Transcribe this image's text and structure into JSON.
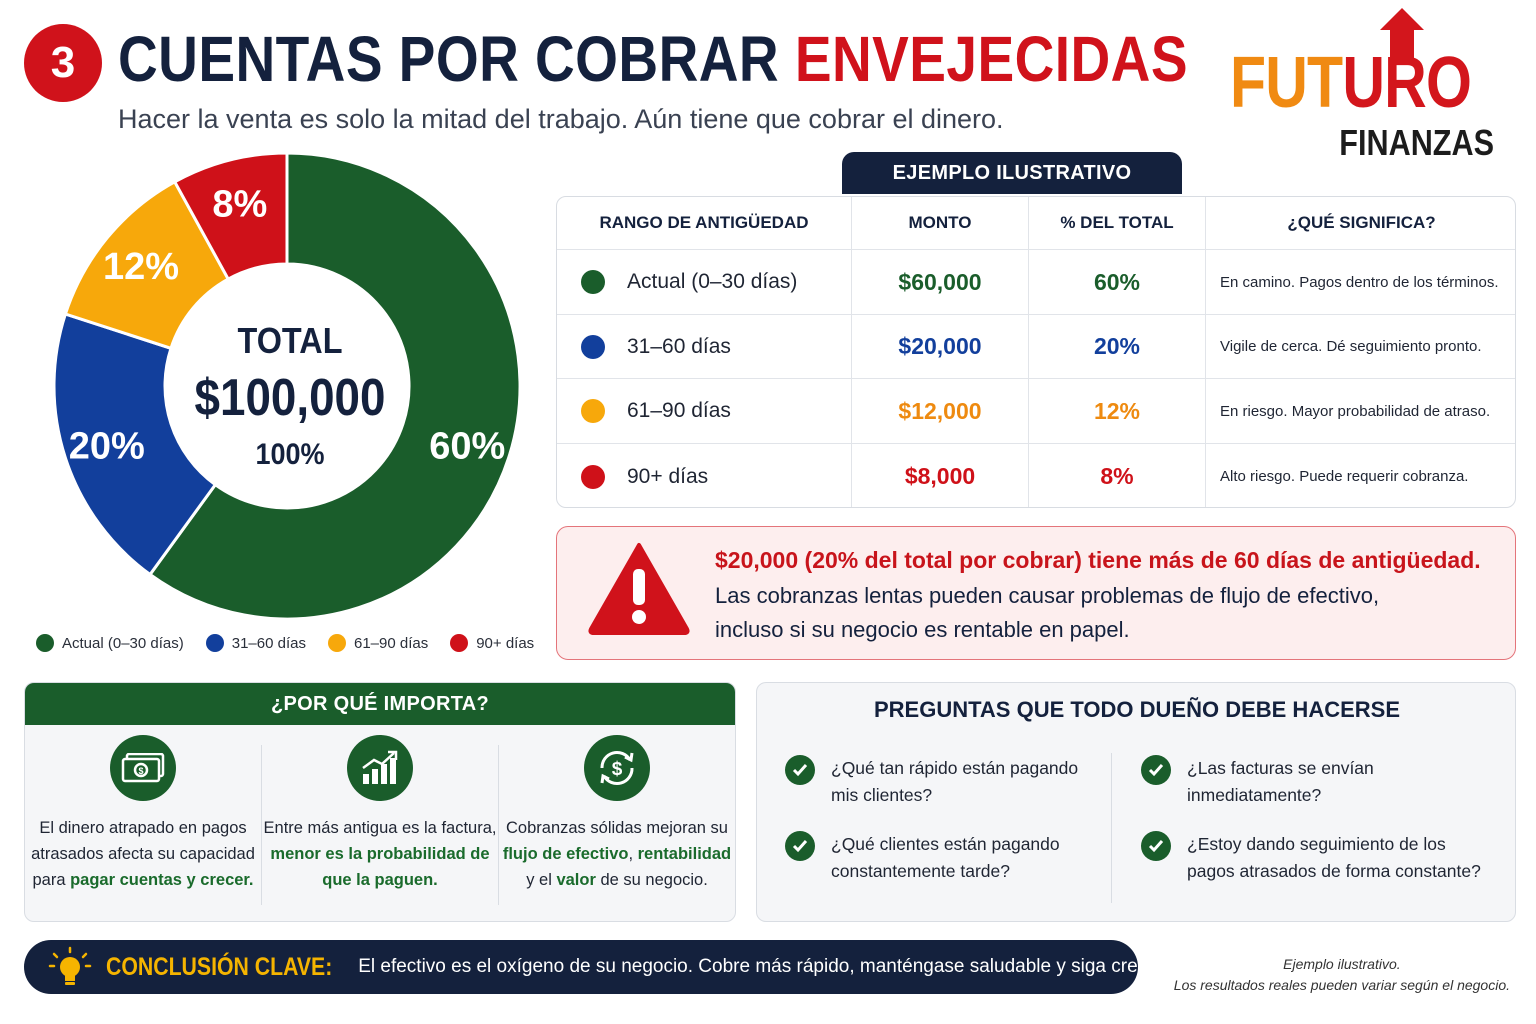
{
  "header": {
    "number": "3",
    "title_part1": "CUENTAS POR COBRAR",
    "title_part2": "ENVEJECIDAS",
    "subtitle": "Hacer la venta es solo la mitad del trabajo. Aún tiene que cobrar el dinero."
  },
  "logo": {
    "word_a": "FUT",
    "word_b": "U",
    "word_c": "RO",
    "word_bottom": "FINANZAS"
  },
  "colors": {
    "green": "#1a5d2b",
    "blue": "#123f9c",
    "orange": "#f7a80b",
    "red": "#cf1119",
    "navy": "#14213d"
  },
  "chart_data": {
    "type": "pie",
    "categories": [
      "Actual (0–30 días)",
      "31–60 días",
      "61–90 días",
      "90+ días"
    ],
    "values": [
      60,
      20,
      12,
      8
    ],
    "labels": [
      "60%",
      "20%",
      "12%",
      "8%"
    ],
    "legend_placement": "bottom",
    "center": {
      "title": "TOTAL",
      "amount": "$100,000",
      "percent": "100%"
    }
  },
  "table": {
    "tab_label": "EJEMPLO ILUSTRATIVO",
    "headers": [
      "RANGO DE ANTIGÜEDAD",
      "MONTO",
      "% DEL TOTAL",
      "¿QUÉ SIGNIFICA?"
    ],
    "rows": [
      {
        "range": "Actual (0–30 días)",
        "amount": "$60,000",
        "percent": "60%",
        "meaning": "En camino. Pagos dentro de los términos.",
        "color": "#1a5d2b"
      },
      {
        "range": "31–60 días",
        "amount": "$20,000",
        "percent": "20%",
        "meaning": "Vigile de cerca. Dé seguimiento pronto.",
        "color": "#123f9c"
      },
      {
        "range": "61–90 días",
        "amount": "$12,000",
        "percent": "12%",
        "meaning": "En riesgo. Mayor probabilidad de atraso.",
        "color": "#ee8a10"
      },
      {
        "range": "90+ días",
        "amount": "$8,000",
        "percent": "8%",
        "meaning": "Alto riesgo. Puede requerir cobranza.",
        "color": "#cf1119"
      }
    ]
  },
  "alert": {
    "line1": "$20,000 (20% del total por cobrar) tiene más de 60 días de antigüedad.",
    "line2": "Las cobranzas lentas pueden causar problemas de flujo de efectivo,",
    "line3": "incluso si su negocio es rentable en papel."
  },
  "why": {
    "title": "¿POR QUÉ IMPORTA?",
    "col1": {
      "a": "El dinero atrapado en pagos atrasados afecta su capacidad para ",
      "b": "pagar cuentas y crecer."
    },
    "col2": {
      "a": "Entre más antigua es la factura, ",
      "b": "menor es la probabilidad de que la paguen."
    },
    "col3": {
      "a": "Cobranzas sólidas mejoran su ",
      "b": "flujo de efectivo",
      "c": ", ",
      "d": "rentabilidad",
      "e": " y el ",
      "f": "valor",
      "g": " de su negocio."
    }
  },
  "questions": {
    "title": "PREGUNTAS QUE TODO DUEÑO DEBE HACERSE",
    "items": [
      "¿Qué tan rápido están pagando mis clientes?",
      "¿Qué clientes están pagando constantemente tarde?",
      "¿Las facturas se envían inmediatamente?",
      "¿Estoy dando seguimiento de los pagos atrasados de forma constante?"
    ]
  },
  "conclusion": {
    "label": "CONCLUSIÓN CLAVE:",
    "text": "El efectivo es el oxígeno de su negocio. Cobre más rápido, manténgase saludable y siga creciendo."
  },
  "footnote": {
    "line1": "Ejemplo ilustrativo.",
    "line2": "Los resultados reales pueden variar según el negocio."
  }
}
